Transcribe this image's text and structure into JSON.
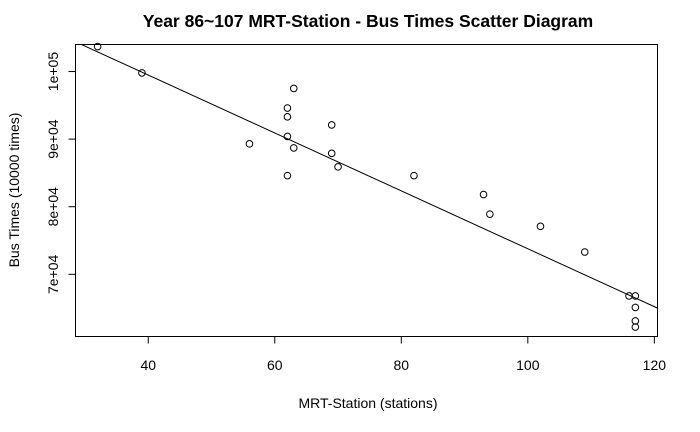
{
  "chart_data": {
    "type": "scatter",
    "title": "Year 86~107 MRT-Station  -  Bus Times Scatter Diagram",
    "xlabel": "MRT-Station (stations)",
    "ylabel": "Bus Times (10000 times)",
    "xlim": [
      28.5,
      120.5
    ],
    "ylim": [
      60800,
      104000
    ],
    "x_ticks": [
      40,
      60,
      80,
      100,
      120
    ],
    "x_tick_labels": [
      "40",
      "60",
      "80",
      "100",
      "120"
    ],
    "y_ticks": [
      70000,
      80000,
      90000,
      100000
    ],
    "y_tick_labels": [
      "7e+04",
      "8e+04",
      "9e+04",
      "1e+05"
    ],
    "grid": false,
    "points": [
      {
        "x": 32,
        "y": 103700
      },
      {
        "x": 39,
        "y": 99800
      },
      {
        "x": 56,
        "y": 89300
      },
      {
        "x": 62,
        "y": 84600
      },
      {
        "x": 62,
        "y": 90400
      },
      {
        "x": 62,
        "y": 93300
      },
      {
        "x": 62,
        "y": 94600
      },
      {
        "x": 63,
        "y": 88700
      },
      {
        "x": 63,
        "y": 97500
      },
      {
        "x": 69,
        "y": 92100
      },
      {
        "x": 69,
        "y": 87900
      },
      {
        "x": 70,
        "y": 85900
      },
      {
        "x": 82,
        "y": 84600
      },
      {
        "x": 93,
        "y": 81800
      },
      {
        "x": 94,
        "y": 78900
      },
      {
        "x": 102,
        "y": 77100
      },
      {
        "x": 109,
        "y": 73300
      },
      {
        "x": 116,
        "y": 66800
      },
      {
        "x": 117,
        "y": 66800
      },
      {
        "x": 117,
        "y": 65100
      },
      {
        "x": 117,
        "y": 63100
      },
      {
        "x": 117,
        "y": 62200
      }
    ],
    "regression_line": {
      "x": [
        28.5,
        120.5
      ],
      "y": [
        104400,
        65000
      ]
    }
  }
}
